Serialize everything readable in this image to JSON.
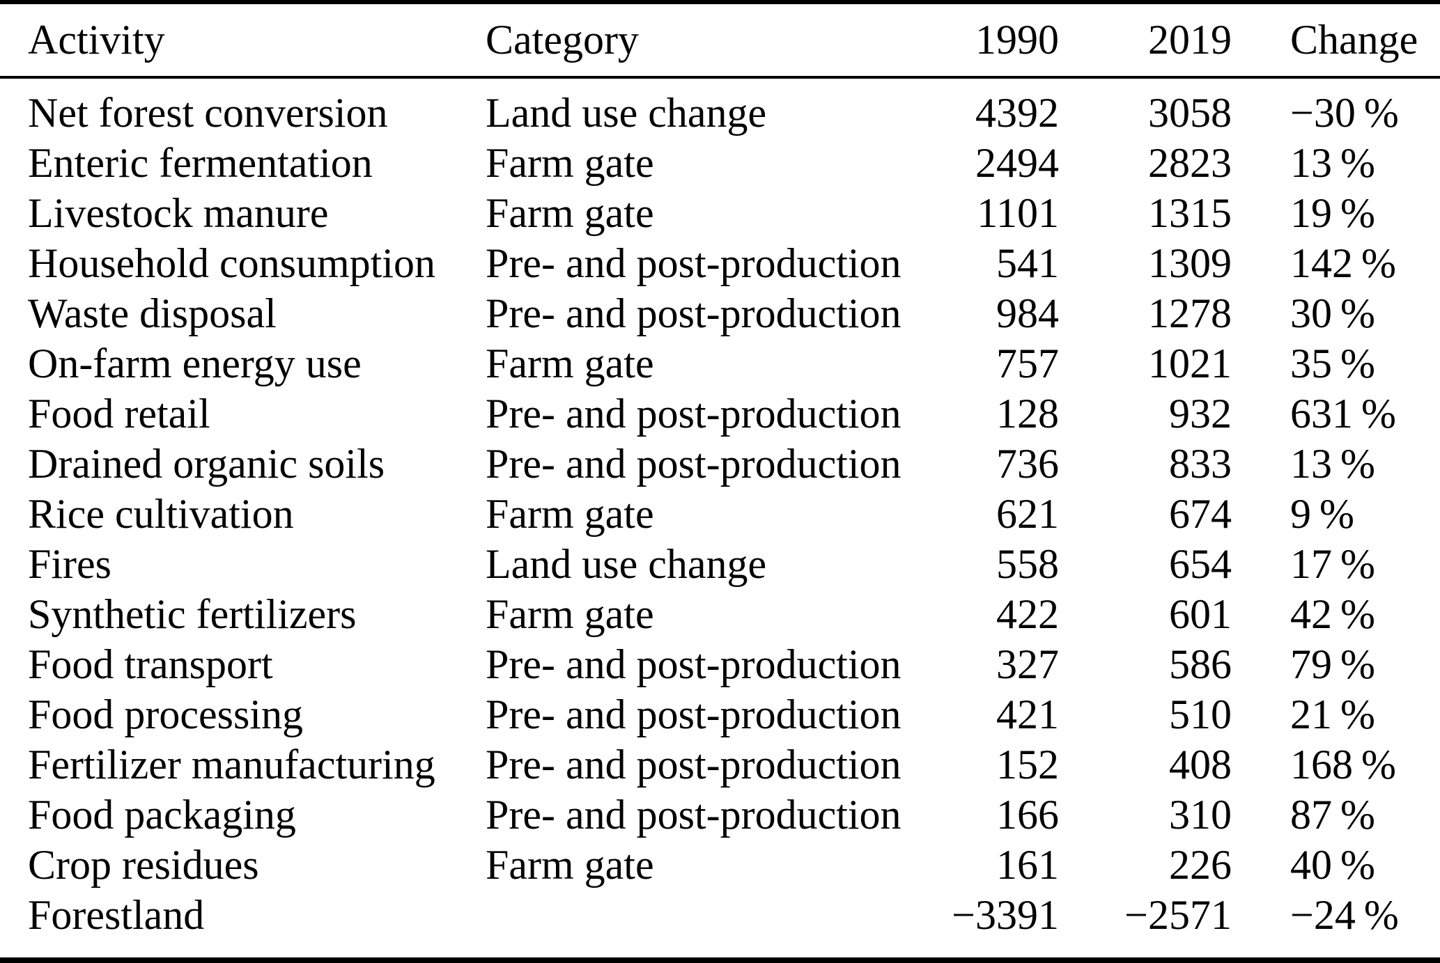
{
  "colors": {
    "background": "#ffffff",
    "text": "#000000",
    "rule": "#000000"
  },
  "table": {
    "header": {
      "activity": "Activity",
      "category": "Category",
      "y1990": "1990",
      "y2019": "2019",
      "change": "Change"
    },
    "rows": [
      {
        "activity": "Net forest conversion",
        "category": "Land use change",
        "y1990": "4392",
        "y2019": "3058",
        "change": "−30 %"
      },
      {
        "activity": "Enteric fermentation",
        "category": "Farm gate",
        "y1990": "2494",
        "y2019": "2823",
        "change": "13 %"
      },
      {
        "activity": "Livestock manure",
        "category": "Farm gate",
        "y1990": "1101",
        "y2019": "1315",
        "change": "19 %"
      },
      {
        "activity": "Household consumption",
        "category": "Pre- and post-production",
        "y1990": "541",
        "y2019": "1309",
        "change": "142 %"
      },
      {
        "activity": "Waste disposal",
        "category": "Pre- and post-production",
        "y1990": "984",
        "y2019": "1278",
        "change": "30 %"
      },
      {
        "activity": "On-farm energy use",
        "category": "Farm gate",
        "y1990": "757",
        "y2019": "1021",
        "change": "35 %"
      },
      {
        "activity": "Food retail",
        "category": "Pre- and post-production",
        "y1990": "128",
        "y2019": "932",
        "change": "631 %"
      },
      {
        "activity": "Drained organic soils",
        "category": "Pre- and post-production",
        "y1990": "736",
        "y2019": "833",
        "change": "13 %"
      },
      {
        "activity": "Rice cultivation",
        "category": "Farm gate",
        "y1990": "621",
        "y2019": "674",
        "change": "9 %"
      },
      {
        "activity": "Fires",
        "category": "Land use change",
        "y1990": "558",
        "y2019": "654",
        "change": "17 %"
      },
      {
        "activity": "Synthetic fertilizers",
        "category": "Farm gate",
        "y1990": "422",
        "y2019": "601",
        "change": "42 %"
      },
      {
        "activity": "Food transport",
        "category": "Pre- and post-production",
        "y1990": "327",
        "y2019": "586",
        "change": "79 %"
      },
      {
        "activity": "Food processing",
        "category": "Pre- and post-production",
        "y1990": "421",
        "y2019": "510",
        "change": "21 %"
      },
      {
        "activity": "Fertilizer manufacturing",
        "category": "Pre- and post-production",
        "y1990": "152",
        "y2019": "408",
        "change": "168 %"
      },
      {
        "activity": "Food packaging",
        "category": "Pre- and post-production",
        "y1990": "166",
        "y2019": "310",
        "change": "87 %"
      },
      {
        "activity": "Crop residues",
        "category": "Farm gate",
        "y1990": "161",
        "y2019": "226",
        "change": "40 %"
      },
      {
        "activity": "Forestland",
        "category": "",
        "y1990": "−3391",
        "y2019": "−2571",
        "change": "−24 %"
      }
    ]
  },
  "chart_data": {
    "type": "table",
    "columns": [
      "Activity",
      "Category",
      "1990",
      "2019",
      "Change"
    ],
    "rows": [
      [
        "Net forest conversion",
        "Land use change",
        4392,
        3058,
        -30
      ],
      [
        "Enteric fermentation",
        "Farm gate",
        2494,
        2823,
        13
      ],
      [
        "Livestock manure",
        "Farm gate",
        1101,
        1315,
        19
      ],
      [
        "Household consumption",
        "Pre- and post-production",
        541,
        1309,
        142
      ],
      [
        "Waste disposal",
        "Pre- and post-production",
        984,
        1278,
        30
      ],
      [
        "On-farm energy use",
        "Farm gate",
        757,
        1021,
        35
      ],
      [
        "Food retail",
        "Pre- and post-production",
        128,
        932,
        631
      ],
      [
        "Drained organic soils",
        "Pre- and post-production",
        736,
        833,
        13
      ],
      [
        "Rice cultivation",
        "Farm gate",
        621,
        674,
        9
      ],
      [
        "Fires",
        "Land use change",
        558,
        654,
        17
      ],
      [
        "Synthetic fertilizers",
        "Farm gate",
        422,
        601,
        42
      ],
      [
        "Food transport",
        "Pre- and post-production",
        327,
        586,
        79
      ],
      [
        "Food processing",
        "Pre- and post-production",
        421,
        510,
        21
      ],
      [
        "Fertilizer manufacturing",
        "Pre- and post-production",
        152,
        408,
        168
      ],
      [
        "Food packaging",
        "Pre- and post-production",
        166,
        310,
        87
      ],
      [
        "Crop residues",
        "Farm gate",
        161,
        226,
        40
      ],
      [
        "Forestland",
        "",
        -3391,
        -2571,
        -24
      ]
    ],
    "change_unit": "%"
  }
}
